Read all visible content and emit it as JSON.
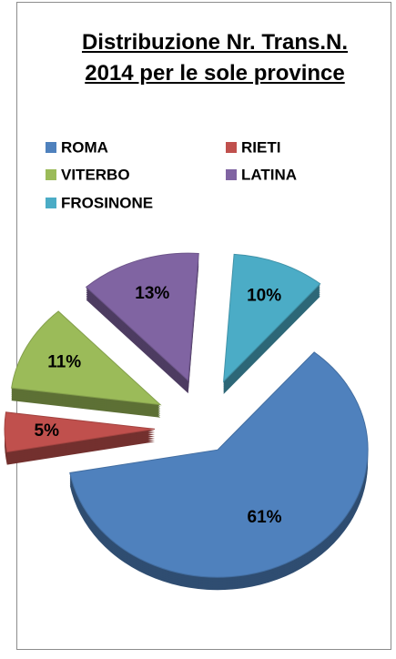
{
  "chart_data": {
    "type": "pie",
    "title": "Distribuzione Nr. Trans.N. 2014 per le sole province",
    "categories": [
      "ROMA",
      "RIETI",
      "VITERBO",
      "LATINA",
      "FROSINONE"
    ],
    "values": [
      61,
      5,
      11,
      13,
      10
    ],
    "value_labels": [
      "61%",
      "5%",
      "11%",
      "13%",
      "10%"
    ],
    "colors": [
      "#4f81bd",
      "#c0504d",
      "#9bbb59",
      "#8064a2",
      "#4bacc6"
    ],
    "legend": "top"
  }
}
